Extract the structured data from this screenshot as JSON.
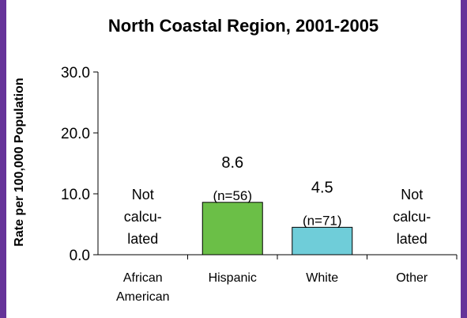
{
  "chart_data": {
    "type": "bar",
    "title": "North Coastal Region, 2001-2005",
    "ylabel": "Rate per 100,000 Population",
    "xlabel": "",
    "ylim": [
      0,
      30
    ],
    "y_ticks": [
      "0.0",
      "10.0",
      "20.0",
      "30.0"
    ],
    "categories": [
      {
        "lines": [
          "African",
          "American"
        ],
        "value": null,
        "value_label": "",
        "n_label": "",
        "note_lines": [
          "Not",
          "calcu-",
          "lated"
        ],
        "color": ""
      },
      {
        "lines": [
          "Hispanic"
        ],
        "value": 8.6,
        "value_label": "8.6",
        "n_label": "(n=56)",
        "note_lines": [],
        "color": "#6bbf47"
      },
      {
        "lines": [
          "White"
        ],
        "value": 4.5,
        "value_label": "4.5",
        "n_label": "(n=71)",
        "note_lines": [],
        "color": "#6fcdd9"
      },
      {
        "lines": [
          "Other"
        ],
        "value": null,
        "value_label": "",
        "n_label": "",
        "note_lines": [
          "Not",
          "calcu-",
          "lated"
        ],
        "color": ""
      }
    ],
    "grid": false,
    "legend": "none"
  },
  "colors": {
    "frame": "#663399",
    "background": "#ffffff"
  }
}
